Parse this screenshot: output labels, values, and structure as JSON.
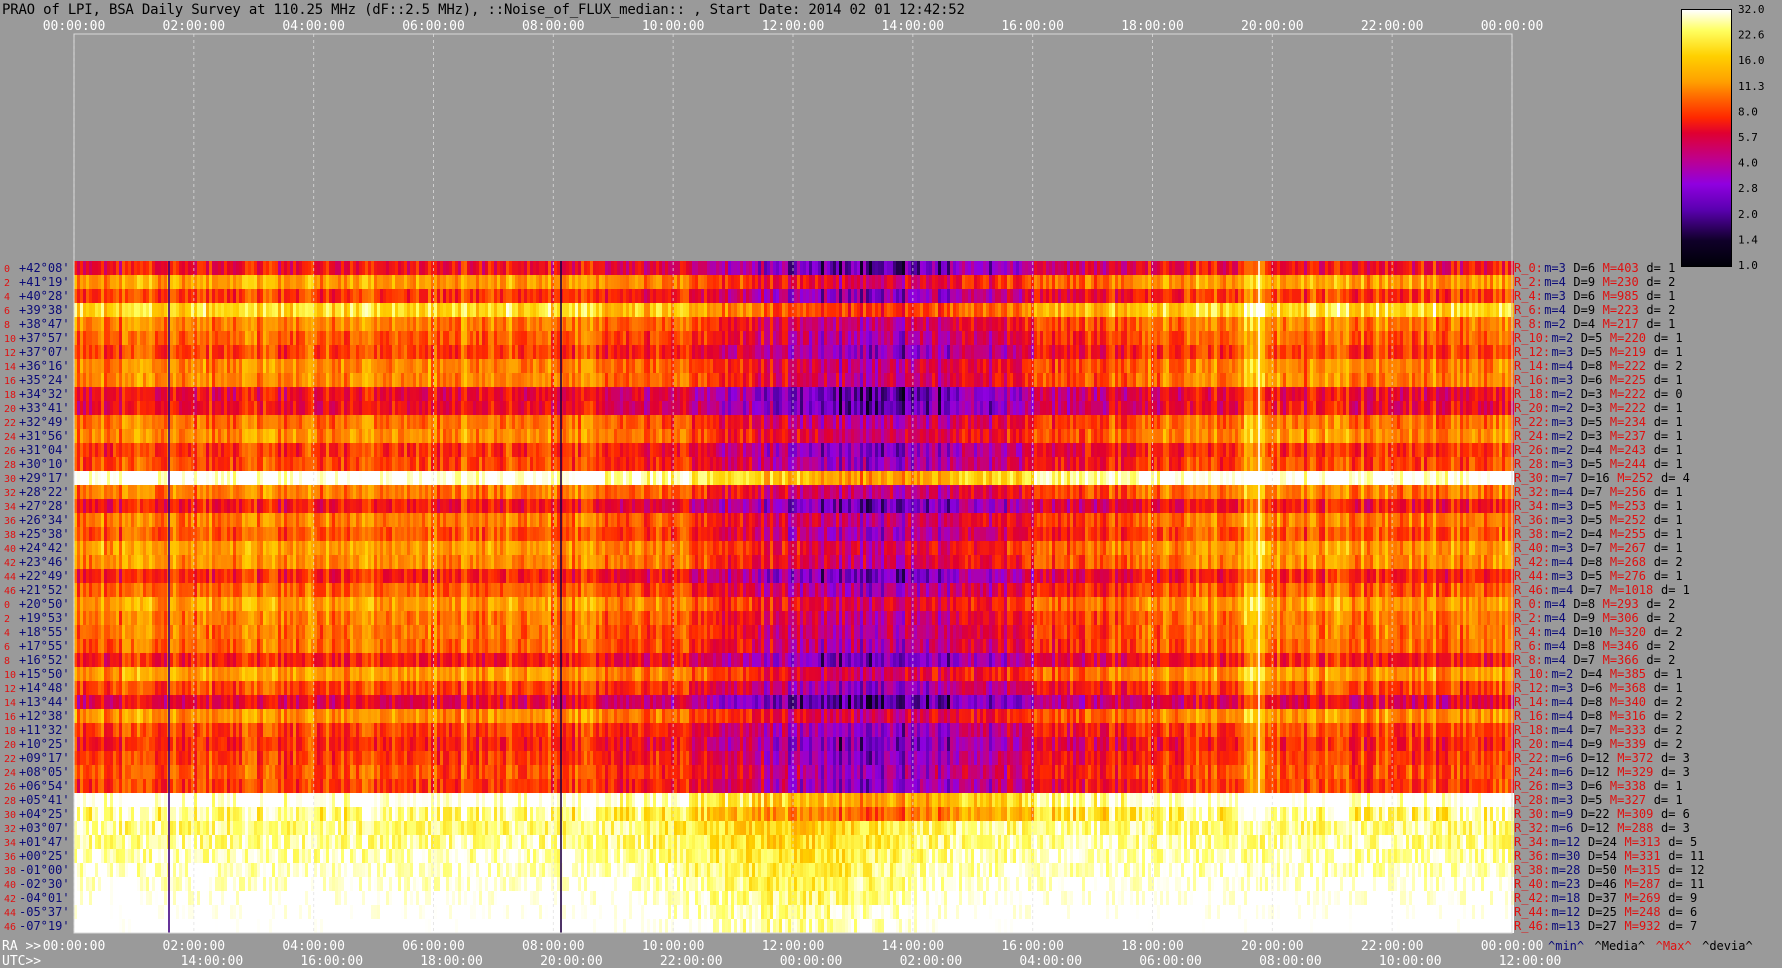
{
  "title": "PRAO of LPI, BSA Daily Survey at 110.25 MHz (dF::2.5 MHz), ::Noise_of_FLUX_median:: , Start Date: 2014 02 01 12:42:52",
  "chart_data": {
    "type": "heatmap",
    "title": "PRAO of LPI, BSA Daily Survey at 110.25 MHz (dF::2.5 MHz), ::Noise_of_FLUX_median:: , Start Date: 2014 02 01 12:42:52",
    "top_axis_ticks": [
      "00:00:00",
      "02:00:00",
      "04:00:00",
      "06:00:00",
      "08:00:00",
      "10:00:00",
      "12:00:00",
      "14:00:00",
      "16:00:00",
      "18:00:00",
      "20:00:00",
      "22:00:00",
      "00:00:00"
    ],
    "ra_axis_label": "RA >>",
    "ra_axis_ticks": [
      "00:00:00",
      "02:00:00",
      "04:00:00",
      "06:00:00",
      "08:00:00",
      "10:00:00",
      "12:00:00",
      "14:00:00",
      "16:00:00",
      "18:00:00",
      "20:00:00",
      "22:00:00",
      "00:00:00"
    ],
    "utc_axis_label": "UTC>>",
    "utc_axis_ticks": [
      "14:00:00",
      "16:00:00",
      "18:00:00",
      "20:00:00",
      "22:00:00",
      "00:00:00",
      "02:00:00",
      "04:00:00",
      "06:00:00",
      "08:00:00",
      "10:00:00",
      "12:00:00"
    ],
    "colorbar_ticks": [
      "32.0",
      "22.6",
      "16.0",
      "11.3",
      "8.0",
      "5.7",
      "4.0",
      "2.8",
      "2.0",
      "1.4",
      "1.0"
    ],
    "declination_rows": [
      "+42°08'",
      "+41°19'",
      "+40°28'",
      "+39°38'",
      "+38°47'",
      "+37°57'",
      "+37°07'",
      "+36°16'",
      "+35°24'",
      "+34°32'",
      "+33°41'",
      "+32°49'",
      "+31°56'",
      "+31°04'",
      "+30°10'",
      "+29°17'",
      "+28°22'",
      "+27°28'",
      "+26°34'",
      "+25°38'",
      "+24°42'",
      "+23°46'",
      "+22°49'",
      "+21°52'",
      "+20°50'",
      "+19°53'",
      "+18°55'",
      "+17°55'",
      "+16°52'",
      "+15°50'",
      "+14°48'",
      "+13°44'",
      "+12°38'",
      "+11°32'",
      "+10°25'",
      "+09°17'",
      "+08°05'",
      "+06°54'",
      "+05°41'",
      "+04°25'",
      "+03°07'",
      "+01°47'",
      "+00°25'",
      "-01°00'",
      "-02°30'",
      "-04°01'",
      "-05°37'",
      "-07°19'"
    ],
    "row_numbers": [
      "0",
      "2",
      "4",
      "6",
      "8",
      "10",
      "12",
      "14",
      "16",
      "18",
      "20",
      "22",
      "24",
      "26",
      "28",
      "30",
      "32",
      "34",
      "36",
      "38",
      "40",
      "42",
      "44",
      "46",
      "0",
      "2",
      "4",
      "6",
      "8",
      "10",
      "12",
      "14",
      "16",
      "18",
      "20",
      "22",
      "24",
      "26",
      "28",
      "30",
      "32",
      "34",
      "36",
      "38",
      "40",
      "42",
      "44",
      "46"
    ],
    "row_stats": [
      {
        "r": "R_0:",
        "m": "m=3",
        "D": "D=6",
        "M": "M=403",
        "d": "d= 1"
      },
      {
        "r": "R_2:",
        "m": "m=4",
        "D": "D=9",
        "M": "M=230",
        "d": "d= 2"
      },
      {
        "r": "R_4:",
        "m": "m=3",
        "D": "D=6",
        "M": "M=985",
        "d": "d= 1"
      },
      {
        "r": "R_6:",
        "m": "m=4",
        "D": "D=9",
        "M": "M=223",
        "d": "d= 2"
      },
      {
        "r": "R_8:",
        "m": "m=2",
        "D": "D=4",
        "M": "M=217",
        "d": "d= 1"
      },
      {
        "r": "R_10:",
        "m": "m=2",
        "D": "D=5",
        "M": "M=220",
        "d": "d= 1"
      },
      {
        "r": "R_12:",
        "m": "m=3",
        "D": "D=5",
        "M": "M=219",
        "d": "d= 1"
      },
      {
        "r": "R_14:",
        "m": "m=4",
        "D": "D=8",
        "M": "M=222",
        "d": "d= 2"
      },
      {
        "r": "R_16:",
        "m": "m=3",
        "D": "D=6",
        "M": "M=225",
        "d": "d= 1"
      },
      {
        "r": "R_18:",
        "m": "m=2",
        "D": "D=3",
        "M": "M=222",
        "d": "d= 0"
      },
      {
        "r": "R_20:",
        "m": "m=2",
        "D": "D=3",
        "M": "M=222",
        "d": "d= 1"
      },
      {
        "r": "R_22:",
        "m": "m=3",
        "D": "D=5",
        "M": "M=234",
        "d": "d= 1"
      },
      {
        "r": "R_24:",
        "m": "m=2",
        "D": "D=3",
        "M": "M=237",
        "d": "d= 1"
      },
      {
        "r": "R_26:",
        "m": "m=2",
        "D": "D=4",
        "M": "M=243",
        "d": "d= 1"
      },
      {
        "r": "R_28:",
        "m": "m=3",
        "D": "D=5",
        "M": "M=244",
        "d": "d= 1"
      },
      {
        "r": "R_30:",
        "m": "m=7",
        "D": "D=16",
        "M": "M=252",
        "d": "d= 4"
      },
      {
        "r": "R_32:",
        "m": "m=4",
        "D": "D=7",
        "M": "M=256",
        "d": "d= 1"
      },
      {
        "r": "R_34:",
        "m": "m=3",
        "D": "D=5",
        "M": "M=253",
        "d": "d= 1"
      },
      {
        "r": "R_36:",
        "m": "m=3",
        "D": "D=5",
        "M": "M=252",
        "d": "d= 1"
      },
      {
        "r": "R_38:",
        "m": "m=2",
        "D": "D=4",
        "M": "M=255",
        "d": "d= 1"
      },
      {
        "r": "R_40:",
        "m": "m=3",
        "D": "D=7",
        "M": "M=267",
        "d": "d= 1"
      },
      {
        "r": "R_42:",
        "m": "m=4",
        "D": "D=8",
        "M": "M=268",
        "d": "d= 2"
      },
      {
        "r": "R_44:",
        "m": "m=3",
        "D": "D=5",
        "M": "M=276",
        "d": "d= 1"
      },
      {
        "r": "R_46:",
        "m": "m=4",
        "D": "D=7",
        "M": "M=1018",
        "d": "d= 1"
      },
      {
        "r": "R_0:",
        "m": "m=4",
        "D": "D=8",
        "M": "M=293",
        "d": "d= 2"
      },
      {
        "r": "R_2:",
        "m": "m=4",
        "D": "D=9",
        "M": "M=306",
        "d": "d= 2"
      },
      {
        "r": "R_4:",
        "m": "m=4",
        "D": "D=10",
        "M": "M=320",
        "d": "d= 2"
      },
      {
        "r": "R_6:",
        "m": "m=4",
        "D": "D=8",
        "M": "M=346",
        "d": "d= 2"
      },
      {
        "r": "R_8:",
        "m": "m=4",
        "D": "D=7",
        "M": "M=366",
        "d": "d= 2"
      },
      {
        "r": "R_10:",
        "m": "m=2",
        "D": "D=4",
        "M": "M=385",
        "d": "d= 1"
      },
      {
        "r": "R_12:",
        "m": "m=3",
        "D": "D=6",
        "M": "M=368",
        "d": "d= 1"
      },
      {
        "r": "R_14:",
        "m": "m=4",
        "D": "D=8",
        "M": "M=340",
        "d": "d= 2"
      },
      {
        "r": "R_16:",
        "m": "m=4",
        "D": "D=8",
        "M": "M=316",
        "d": "d= 2"
      },
      {
        "r": "R_18:",
        "m": "m=4",
        "D": "D=7",
        "M": "M=333",
        "d": "d= 2"
      },
      {
        "r": "R_20:",
        "m": "m=4",
        "D": "D=9",
        "M": "M=339",
        "d": "d= 2"
      },
      {
        "r": "R_22:",
        "m": "m=6",
        "D": "D=12",
        "M": "M=372",
        "d": "d= 3"
      },
      {
        "r": "R_24:",
        "m": "m=6",
        "D": "D=12",
        "M": "M=329",
        "d": "d= 3"
      },
      {
        "r": "R_26:",
        "m": "m=3",
        "D": "D=6",
        "M": "M=338",
        "d": "d= 1"
      },
      {
        "r": "R_28:",
        "m": "m=3",
        "D": "D=5",
        "M": "M=327",
        "d": "d= 1"
      },
      {
        "r": "R_30:",
        "m": "m=9",
        "D": "D=22",
        "M": "M=309",
        "d": "d= 6"
      },
      {
        "r": "R_32:",
        "m": "m=6",
        "D": "D=12",
        "M": "M=288",
        "d": "d= 3"
      },
      {
        "r": "R_34:",
        "m": "m=12",
        "D": "D=24",
        "M": "M=313",
        "d": "d= 5"
      },
      {
        "r": "R_36:",
        "m": "m=30",
        "D": "D=54",
        "M": "M=331",
        "d": "d= 11"
      },
      {
        "r": "R_38:",
        "m": "m=28",
        "D": "D=50",
        "M": "M=315",
        "d": "d= 12"
      },
      {
        "r": "R_40:",
        "m": "m=23",
        "D": "D=46",
        "M": "M=287",
        "d": "d= 11"
      },
      {
        "r": "R_42:",
        "m": "m=18",
        "D": "D=37",
        "M": "M=269",
        "d": "d= 9"
      },
      {
        "r": "R_44:",
        "m": "m=12",
        "D": "D=25",
        "M": "M=248",
        "d": "d= 6"
      },
      {
        "r": "R_46:",
        "m": "m=13",
        "D": "D=27",
        "M": "M=932",
        "d": "d= 7"
      }
    ],
    "stats_legend": [
      "^min^",
      "^Media^",
      "^Max^",
      "^devia^"
    ],
    "colormap": [
      "#000008",
      "#10002a",
      "#5a00b0",
      "#9000e0",
      "#c0008a",
      "#e00030",
      "#ff2800",
      "#ff6a00",
      "#ffa000",
      "#ffd000",
      "#ffff60",
      "#ffffff"
    ]
  }
}
